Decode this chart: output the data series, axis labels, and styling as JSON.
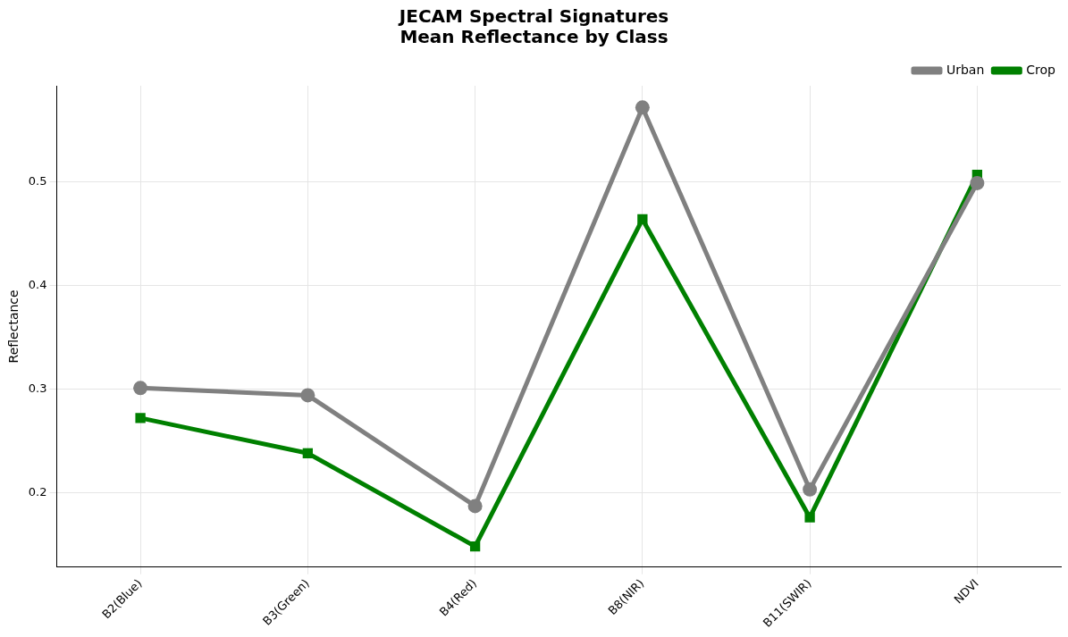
{
  "chart_data": {
    "type": "line",
    "title": "JECAM Spectral Signatures\nMean Reflectance by Class",
    "ylabel": "Reflectance",
    "categories": [
      "B2(Blue)",
      "B3(Green)",
      "B4(Red)",
      "B8(NIR)",
      "B11(SWIR)",
      "NDVI"
    ],
    "series": [
      {
        "name": "Urban",
        "color": "#808080",
        "marker": "circle",
        "values": [
          0.301,
          0.294,
          0.187,
          0.572,
          0.203,
          0.499
        ]
      },
      {
        "name": "Crop",
        "color": "#008000",
        "marker": "square",
        "values": [
          0.272,
          0.238,
          0.148,
          0.464,
          0.176,
          0.507
        ]
      }
    ],
    "ylim": [
      0.128,
      0.593
    ],
    "yticks": [
      0.2,
      0.3,
      0.4,
      0.5
    ],
    "grid": true,
    "legend": "top right",
    "line_style": "solid"
  }
}
